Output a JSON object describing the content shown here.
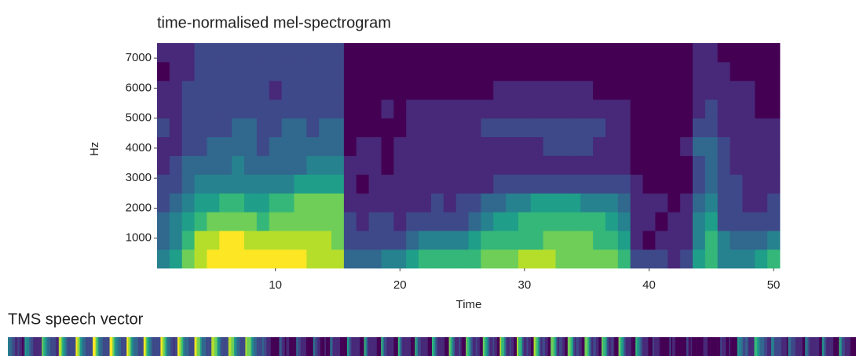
{
  "chart_data": [
    {
      "type": "heatmap",
      "title": "time-normalised mel-spectrogram",
      "x_label": "Time",
      "y_label": "Hz",
      "colormap": "viridis",
      "x": [
        1,
        2,
        3,
        4,
        5,
        6,
        7,
        8,
        9,
        10,
        11,
        12,
        13,
        14,
        15,
        16,
        17,
        18,
        19,
        20,
        21,
        22,
        23,
        24,
        25,
        26,
        27,
        28,
        29,
        30,
        31,
        32,
        33,
        34,
        35,
        36,
        37,
        38,
        39,
        40,
        41,
        42,
        43,
        44,
        45,
        46,
        47,
        48,
        49,
        50
      ],
      "xlim": [
        0.5,
        50.5
      ],
      "xticks": [
        10,
        20,
        30,
        40,
        50
      ],
      "ylim": [
        0,
        7500
      ],
      "yticks": [
        1000,
        2000,
        3000,
        4000,
        5000,
        6000,
        7000
      ],
      "values": [
        [
          5,
          4,
          4,
          3,
          3,
          2,
          2,
          3,
          2,
          2,
          1,
          2
        ],
        [
          6,
          5,
          5,
          4,
          3,
          3,
          2,
          2,
          2,
          2,
          2,
          2
        ],
        [
          8,
          7,
          6,
          5,
          4,
          4,
          3,
          3,
          3,
          3,
          2,
          2
        ],
        [
          9,
          9,
          7,
          6,
          5,
          4,
          3,
          3,
          3,
          3,
          3,
          3
        ],
        [
          10,
          9,
          8,
          6,
          5,
          4,
          4,
          3,
          3,
          3,
          3,
          3
        ],
        [
          10,
          10,
          8,
          7,
          5,
          4,
          4,
          3,
          3,
          3,
          3,
          3
        ],
        [
          10,
          10,
          8,
          7,
          5,
          5,
          4,
          4,
          3,
          3,
          3,
          3
        ],
        [
          10,
          9,
          8,
          6,
          5,
          4,
          4,
          4,
          3,
          3,
          3,
          3
        ],
        [
          10,
          9,
          7,
          6,
          5,
          4,
          3,
          3,
          3,
          3,
          3,
          3
        ],
        [
          10,
          9,
          8,
          7,
          5,
          4,
          4,
          3,
          3,
          2,
          3,
          3
        ],
        [
          10,
          9,
          8,
          7,
          5,
          4,
          4,
          4,
          3,
          3,
          3,
          3
        ],
        [
          10,
          9,
          8,
          8,
          6,
          4,
          4,
          4,
          3,
          3,
          3,
          3
        ],
        [
          9,
          9,
          8,
          8,
          6,
          5,
          4,
          3,
          3,
          3,
          3,
          3
        ],
        [
          9,
          9,
          8,
          8,
          6,
          5,
          4,
          4,
          3,
          3,
          3,
          3
        ],
        [
          9,
          8,
          8,
          8,
          6,
          5,
          4,
          4,
          3,
          3,
          3,
          3
        ],
        [
          4,
          3,
          3,
          2,
          2,
          2,
          1,
          1,
          1,
          1,
          1,
          1
        ],
        [
          4,
          3,
          2,
          2,
          1,
          2,
          2,
          1,
          1,
          1,
          1,
          1
        ],
        [
          4,
          3,
          3,
          2,
          2,
          2,
          2,
          1,
          1,
          1,
          1,
          1
        ],
        [
          5,
          3,
          3,
          2,
          2,
          1,
          1,
          1,
          2,
          1,
          1,
          1
        ],
        [
          5,
          3,
          2,
          2,
          2,
          2,
          2,
          1,
          1,
          1,
          1,
          1
        ],
        [
          6,
          4,
          3,
          2,
          2,
          2,
          2,
          2,
          2,
          1,
          1,
          1
        ],
        [
          7,
          5,
          3,
          2,
          2,
          2,
          2,
          2,
          2,
          1,
          1,
          1
        ],
        [
          7,
          5,
          3,
          3,
          2,
          2,
          2,
          2,
          2,
          1,
          1,
          1
        ],
        [
          7,
          5,
          3,
          2,
          2,
          2,
          2,
          2,
          2,
          1,
          1,
          1
        ],
        [
          7,
          5,
          3,
          3,
          2,
          2,
          2,
          2,
          2,
          1,
          1,
          1
        ],
        [
          7,
          6,
          4,
          3,
          2,
          2,
          2,
          2,
          2,
          1,
          1,
          1
        ],
        [
          8,
          7,
          5,
          4,
          2,
          2,
          2,
          3,
          2,
          1,
          1,
          1
        ],
        [
          8,
          7,
          6,
          4,
          3,
          2,
          2,
          3,
          2,
          2,
          1,
          1
        ],
        [
          8,
          7,
          6,
          5,
          3,
          2,
          2,
          3,
          2,
          2,
          1,
          1
        ],
        [
          9,
          7,
          7,
          5,
          3,
          2,
          2,
          3,
          2,
          2,
          1,
          1
        ],
        [
          9,
          7,
          7,
          6,
          3,
          2,
          2,
          3,
          2,
          2,
          1,
          1
        ],
        [
          9,
          8,
          7,
          6,
          3,
          2,
          3,
          3,
          2,
          2,
          1,
          1
        ],
        [
          8,
          8,
          7,
          6,
          3,
          2,
          3,
          3,
          2,
          2,
          1,
          1
        ],
        [
          8,
          8,
          7,
          6,
          3,
          2,
          3,
          3,
          2,
          2,
          1,
          1
        ],
        [
          8,
          8,
          7,
          5,
          3,
          2,
          3,
          3,
          2,
          2,
          1,
          1
        ],
        [
          8,
          7,
          7,
          5,
          3,
          2,
          2,
          3,
          2,
          1,
          1,
          1
        ],
        [
          8,
          7,
          6,
          5,
          3,
          2,
          2,
          2,
          2,
          1,
          1,
          1
        ],
        [
          7,
          6,
          5,
          4,
          3,
          2,
          2,
          2,
          2,
          1,
          1,
          1
        ],
        [
          3,
          2,
          2,
          2,
          2,
          1,
          1,
          1,
          1,
          1,
          1,
          1
        ],
        [
          3,
          1,
          2,
          2,
          1,
          1,
          1,
          1,
          1,
          1,
          1,
          1
        ],
        [
          3,
          2,
          1,
          2,
          1,
          1,
          1,
          1,
          1,
          1,
          1,
          1
        ],
        [
          2,
          2,
          2,
          1,
          1,
          1,
          1,
          1,
          1,
          1,
          1,
          1
        ],
        [
          3,
          2,
          2,
          2,
          1,
          1,
          2,
          1,
          1,
          1,
          1,
          1
        ],
        [
          6,
          5,
          5,
          4,
          3,
          3,
          4,
          3,
          2,
          2,
          2,
          2
        ],
        [
          7,
          7,
          6,
          5,
          4,
          4,
          4,
          3,
          3,
          2,
          2,
          2
        ],
        [
          5,
          5,
          3,
          3,
          3,
          3,
          3,
          2,
          2,
          2,
          2,
          1
        ],
        [
          5,
          4,
          3,
          3,
          3,
          2,
          2,
          2,
          2,
          2,
          1,
          1
        ],
        [
          5,
          4,
          3,
          2,
          2,
          2,
          2,
          2,
          2,
          2,
          1,
          1
        ],
        [
          6,
          4,
          3,
          2,
          2,
          2,
          2,
          2,
          1,
          1,
          1,
          1
        ],
        [
          7,
          5,
          3,
          3,
          2,
          2,
          2,
          2,
          1,
          1,
          1,
          1
        ]
      ]
    },
    {
      "type": "strip",
      "title": "TMS speech vector"
    }
  ]
}
